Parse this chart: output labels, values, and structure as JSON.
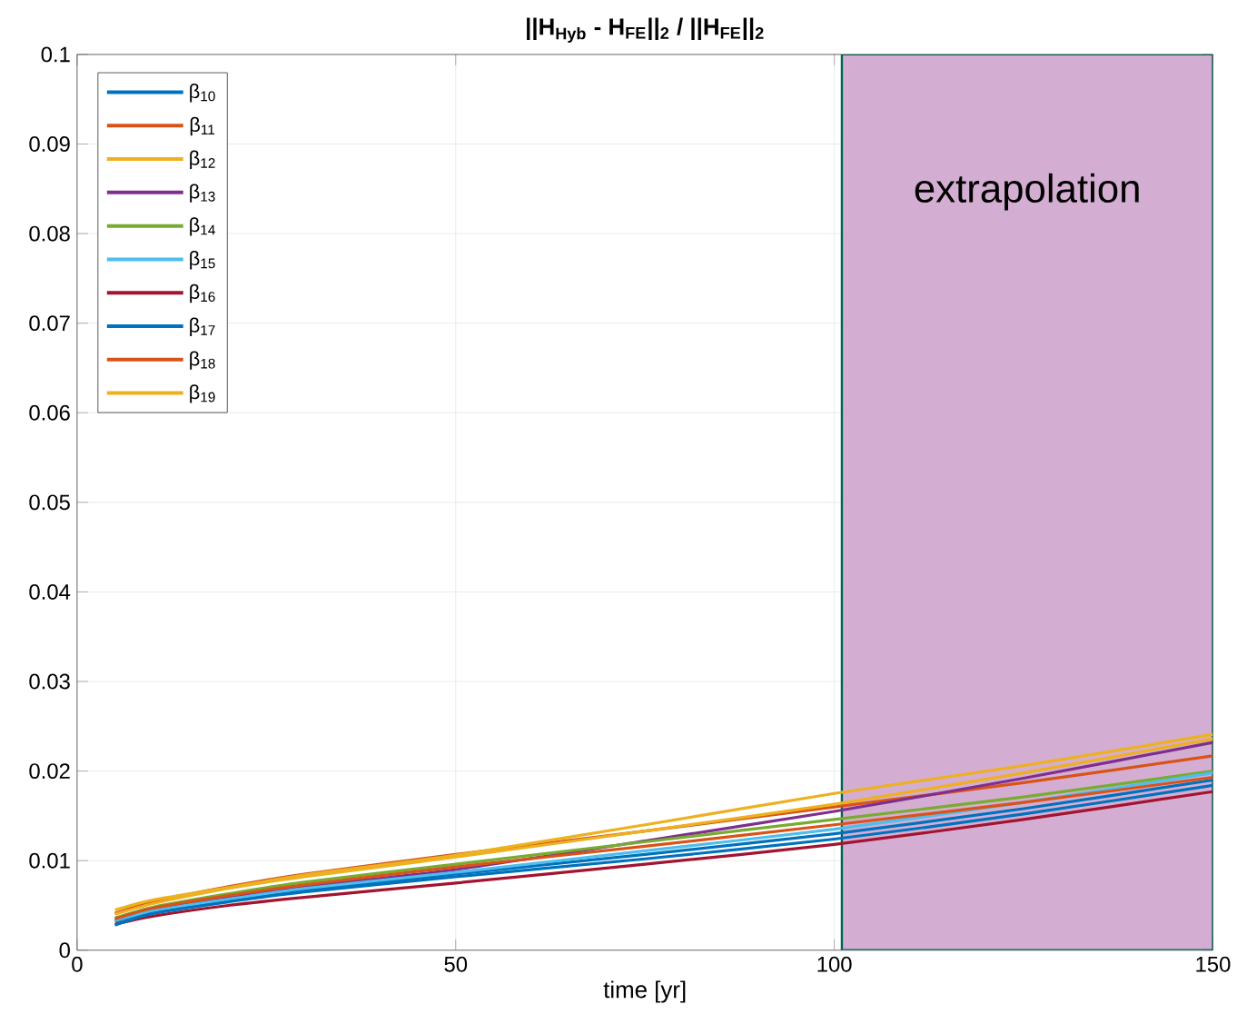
{
  "chart_data": {
    "type": "line",
    "title": "||H$_{Hyb}$ - H$_{FE}$||$_{2}$ / ||H$_{FE}$||$_{2}$",
    "xlabel": "time [yr]",
    "x": [
      5,
      10,
      20,
      30,
      50,
      75,
      100,
      125,
      150
    ],
    "series": [
      {
        "name": "β$_{10}$",
        "color": "#0072bd",
        "values": [
          0.0032,
          0.0043,
          0.0056,
          0.0067,
          0.0085,
          0.0107,
          0.013,
          0.0158,
          0.019
        ]
      },
      {
        "name": "β$_{11}$",
        "color": "#d95319",
        "values": [
          0.0041,
          0.0054,
          0.0071,
          0.0085,
          0.0107,
          0.0133,
          0.016,
          0.0187,
          0.0217
        ]
      },
      {
        "name": "β$_{12}$",
        "color": "#edb120",
        "values": [
          0.004,
          0.0052,
          0.0069,
          0.0082,
          0.0104,
          0.0133,
          0.0163,
          0.0198,
          0.0236
        ]
      },
      {
        "name": "β$_{13}$",
        "color": "#7e2f8e",
        "values": [
          0.0034,
          0.0045,
          0.0059,
          0.0071,
          0.009,
          0.0122,
          0.0155,
          0.0192,
          0.0232
        ]
      },
      {
        "name": "β$_{14}$",
        "color": "#77ac30",
        "values": [
          0.0036,
          0.0048,
          0.0063,
          0.0076,
          0.0096,
          0.0121,
          0.0146,
          0.0171,
          0.02
        ]
      },
      {
        "name": "β$_{15}$",
        "color": "#4dbeee",
        "values": [
          0.0033,
          0.0044,
          0.0057,
          0.0069,
          0.0087,
          0.0111,
          0.0135,
          0.0165,
          0.0198
        ]
      },
      {
        "name": "β$_{16}$",
        "color": "#a2142f",
        "values": [
          0.0029,
          0.0038,
          0.005,
          0.0059,
          0.0075,
          0.0096,
          0.0118,
          0.0146,
          0.0177
        ]
      },
      {
        "name": "β$_{17}$",
        "color": "#0072bd",
        "values": [
          0.0028,
          0.0041,
          0.0054,
          0.0065,
          0.0082,
          0.0102,
          0.0124,
          0.0152,
          0.0184
        ]
      },
      {
        "name": "β$_{18}$",
        "color": "#d95319",
        "values": [
          0.0035,
          0.0047,
          0.0061,
          0.0073,
          0.0093,
          0.0116,
          0.014,
          0.0165,
          0.0193
        ]
      },
      {
        "name": "β$_{19}$",
        "color": "#edb120",
        "values": [
          0.0045,
          0.0056,
          0.007,
          0.0084,
          0.0106,
          0.014,
          0.0175,
          0.0206,
          0.0241
        ]
      }
    ],
    "xlim": [
      0,
      150
    ],
    "ylim": [
      0,
      0.1
    ],
    "xticks": [
      0,
      50,
      100,
      150
    ],
    "yticks": [
      0,
      0.01,
      0.02,
      0.03,
      0.04,
      0.05,
      0.06,
      0.07,
      0.08,
      0.09,
      0.1
    ],
    "bands": [
      {
        "axis": "x",
        "from": 101,
        "to": 150,
        "label": "extrapolation",
        "color": "#d4aed2"
      }
    ],
    "grid": true,
    "legend": "top left",
    "line_style": "solid",
    "marker": "none"
  }
}
